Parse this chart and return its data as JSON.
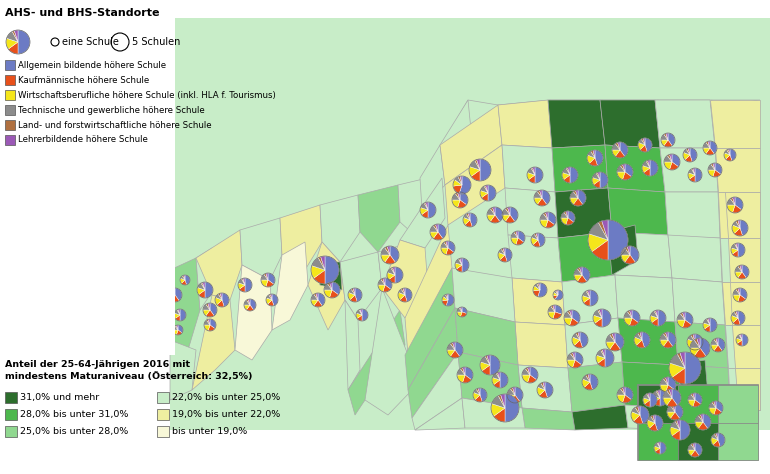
{
  "title_top": "AHS- und BHS-Standorte",
  "subtitle_bottom": "Anteil der 25-64-Jährigen 2016 mit\nmindestens Maturaniveau (Österreich: 32,5%)",
  "legend_pie_colors": [
    "#6c7bc4",
    "#e8501a",
    "#f5e61a",
    "#8c8c8c",
    "#b07040",
    "#9b59b6"
  ],
  "legend_school_types": [
    "Allgemein bildende höhere Schule",
    "Kaufmännische höhere Schule",
    "Wirtschaftsberufliche höhere Schule (inkl. HLA f. Tourismus)",
    "Technische und gewerbliche höhere Schule",
    "Land- und forstwirtschaftliche höhere Schule",
    "Lehrerbildende höhere Schule"
  ],
  "legend_choropleth": [
    {
      "label": "31,0% und mehr",
      "color": "#2d6e2d"
    },
    {
      "label": "28,0% bis unter 31,0%",
      "color": "#4db84d"
    },
    {
      "label": "25,0% bis unter 28,0%",
      "color": "#90d890"
    },
    {
      "label": "22,0% bis unter 25,0%",
      "color": "#c8edc8"
    },
    {
      "label": "19,0% bis unter 22,0%",
      "color": "#eeeea0"
    },
    {
      "label": "bis unter 19,0%",
      "color": "#f8f8d8"
    }
  ],
  "fig_bg_color": "#ffffff",
  "map_colors": {
    "darkest": "#2d6e2d",
    "dark": "#4db84d",
    "medium": "#90d890",
    "light": "#c8edc8",
    "pale": "#eeeea0",
    "palest": "#f8f8d8"
  },
  "border_color": "#aaaaaa"
}
